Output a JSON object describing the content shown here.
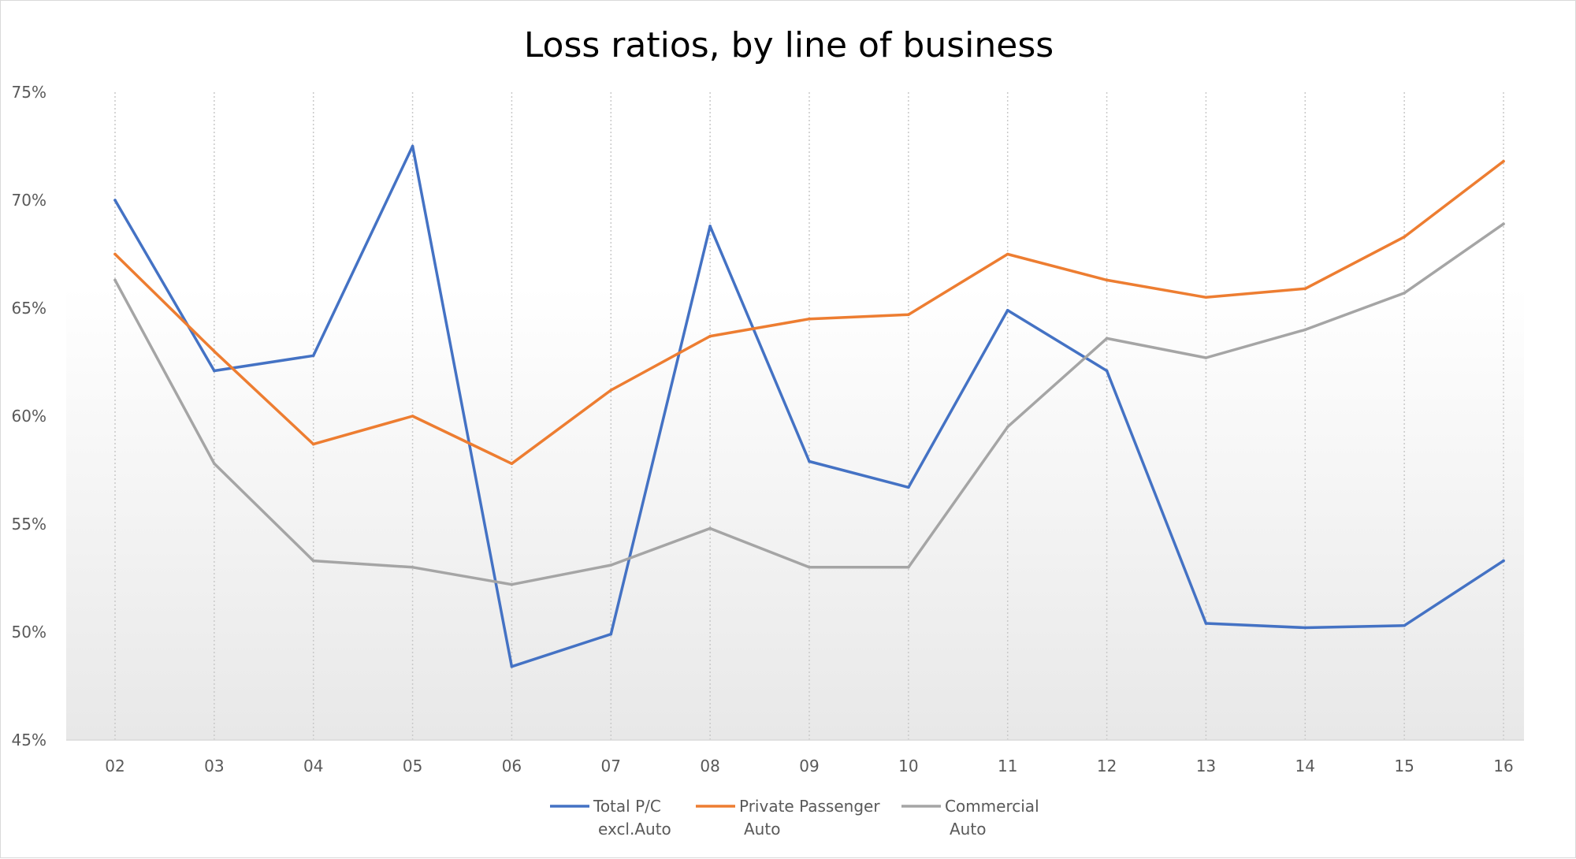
{
  "chart_data": {
    "type": "line",
    "title": "Loss ratios, by line of business",
    "xlabel": "",
    "ylabel": "",
    "categories": [
      "02",
      "03",
      "04",
      "05",
      "06",
      "07",
      "08",
      "09",
      "10",
      "11",
      "12",
      "13",
      "14",
      "15",
      "16"
    ],
    "yticks": [
      "45%",
      "50%",
      "55%",
      "60%",
      "65%",
      "70%",
      "75%"
    ],
    "ylim": [
      45,
      75
    ],
    "grid": "vertical dotted",
    "legend": "bottom",
    "series": [
      {
        "name": "Total P/C excl.Auto",
        "legend_lines": [
          "Total P/C",
          "excl.Auto"
        ],
        "color": "#4472c4",
        "values": [
          70.0,
          62.1,
          62.8,
          72.5,
          48.4,
          49.9,
          68.8,
          57.9,
          56.7,
          64.9,
          62.1,
          50.4,
          50.2,
          50.3,
          53.3
        ]
      },
      {
        "name": "Private Passenger Auto",
        "legend_lines": [
          "Private Passenger",
          "Auto"
        ],
        "color": "#ed7d31",
        "values": [
          67.5,
          63.0,
          58.7,
          60.0,
          57.8,
          61.2,
          63.7,
          64.5,
          64.7,
          67.5,
          66.3,
          65.5,
          65.9,
          68.3,
          71.8
        ]
      },
      {
        "name": "Commercial Auto",
        "legend_lines": [
          "Commercial",
          "Auto"
        ],
        "color": "#a5a5a5",
        "values": [
          66.3,
          57.8,
          53.3,
          53.0,
          52.2,
          53.1,
          54.8,
          53.0,
          53.0,
          59.5,
          63.6,
          62.7,
          64.0,
          65.7,
          68.9
        ]
      }
    ]
  }
}
